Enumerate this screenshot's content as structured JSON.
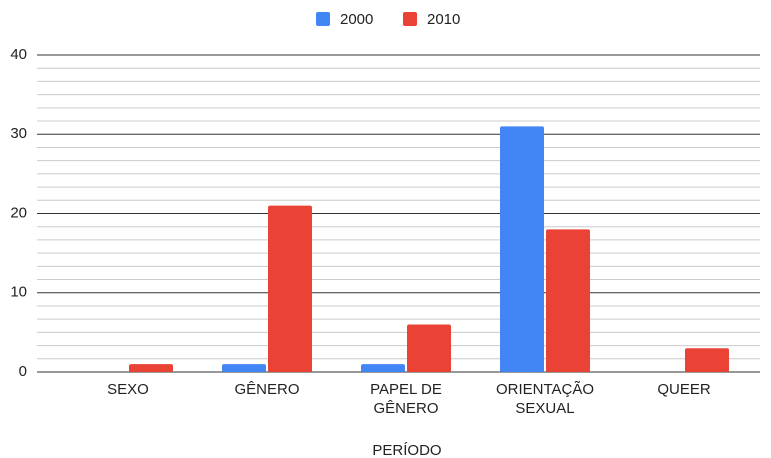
{
  "chart_data": {
    "type": "bar",
    "categories": [
      "SEXO",
      "GÊNERO",
      "PAPEL DE GÊNERO",
      "ORIENTAÇÃO SEXUAL",
      "QUEER"
    ],
    "series": [
      {
        "name": "2000",
        "color": "#4285f4",
        "values": [
          0,
          1,
          1,
          31,
          0
        ]
      },
      {
        "name": "2010",
        "color": "#ea4335",
        "values": [
          1,
          21,
          6,
          18,
          3
        ]
      }
    ],
    "x_label": "PERÍODO",
    "ylim": [
      0,
      40
    ],
    "yticks": [
      0,
      10,
      20,
      30,
      40
    ],
    "grid": true,
    "minor_gridlines": 5,
    "legend": "top"
  }
}
